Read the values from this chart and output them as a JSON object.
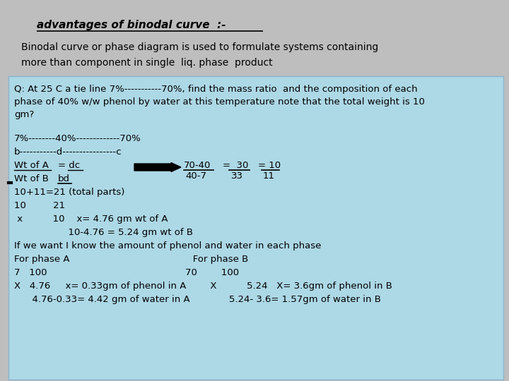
{
  "bg_color": "#bebebe",
  "box_color": "#add8e6",
  "title": "advantages of binodal curve  :-",
  "subtitle1": "Binodal curve or phase diagram is used to formulate systems containing",
  "subtitle2": "more than component in single  liq. phase  product"
}
